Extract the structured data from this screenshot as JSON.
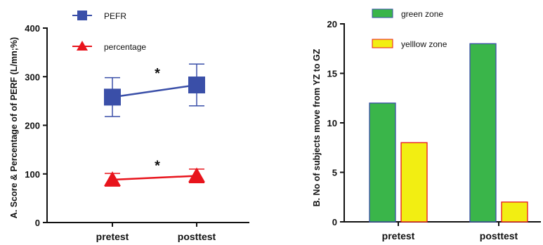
{
  "chart_data": [
    {
      "type": "line",
      "title": "",
      "xlabel": "",
      "ylabel": "A. Score & Percentage of of PERF (L/mn;%)",
      "categories": [
        "pretest",
        "posttest"
      ],
      "ylim": [
        0,
        400
      ],
      "yticks": [
        "0",
        "100",
        "200",
        "300",
        "400"
      ],
      "series": [
        {
          "name": "PEFR",
          "values": [
            258,
            283
          ],
          "error": [
            40,
            43
          ],
          "color": "#3a4fa8",
          "marker": "square"
        },
        {
          "name": "percentage",
          "values": [
            88,
            96
          ],
          "error": [
            13,
            14
          ],
          "color": "#e8141c",
          "marker": "triangle"
        }
      ],
      "annotations": [
        "*",
        "*"
      ],
      "legend": "top-left"
    },
    {
      "type": "bar",
      "title": "",
      "xlabel": "",
      "ylabel": "B. No of subjects move from YZ to GZ",
      "categories": [
        "pretest",
        "posttest"
      ],
      "ylim": [
        0,
        20
      ],
      "yticks": [
        "0",
        "5",
        "10",
        "15",
        "20"
      ],
      "series": [
        {
          "name": "green zone",
          "values": [
            12,
            18
          ],
          "color": "#3ab54a",
          "edge": "#3a4fa8"
        },
        {
          "name": "yelllow zone",
          "values": [
            8,
            2
          ],
          "color": "#f2ee12",
          "edge": "#e8141c"
        }
      ],
      "legend": "top-left"
    }
  ]
}
